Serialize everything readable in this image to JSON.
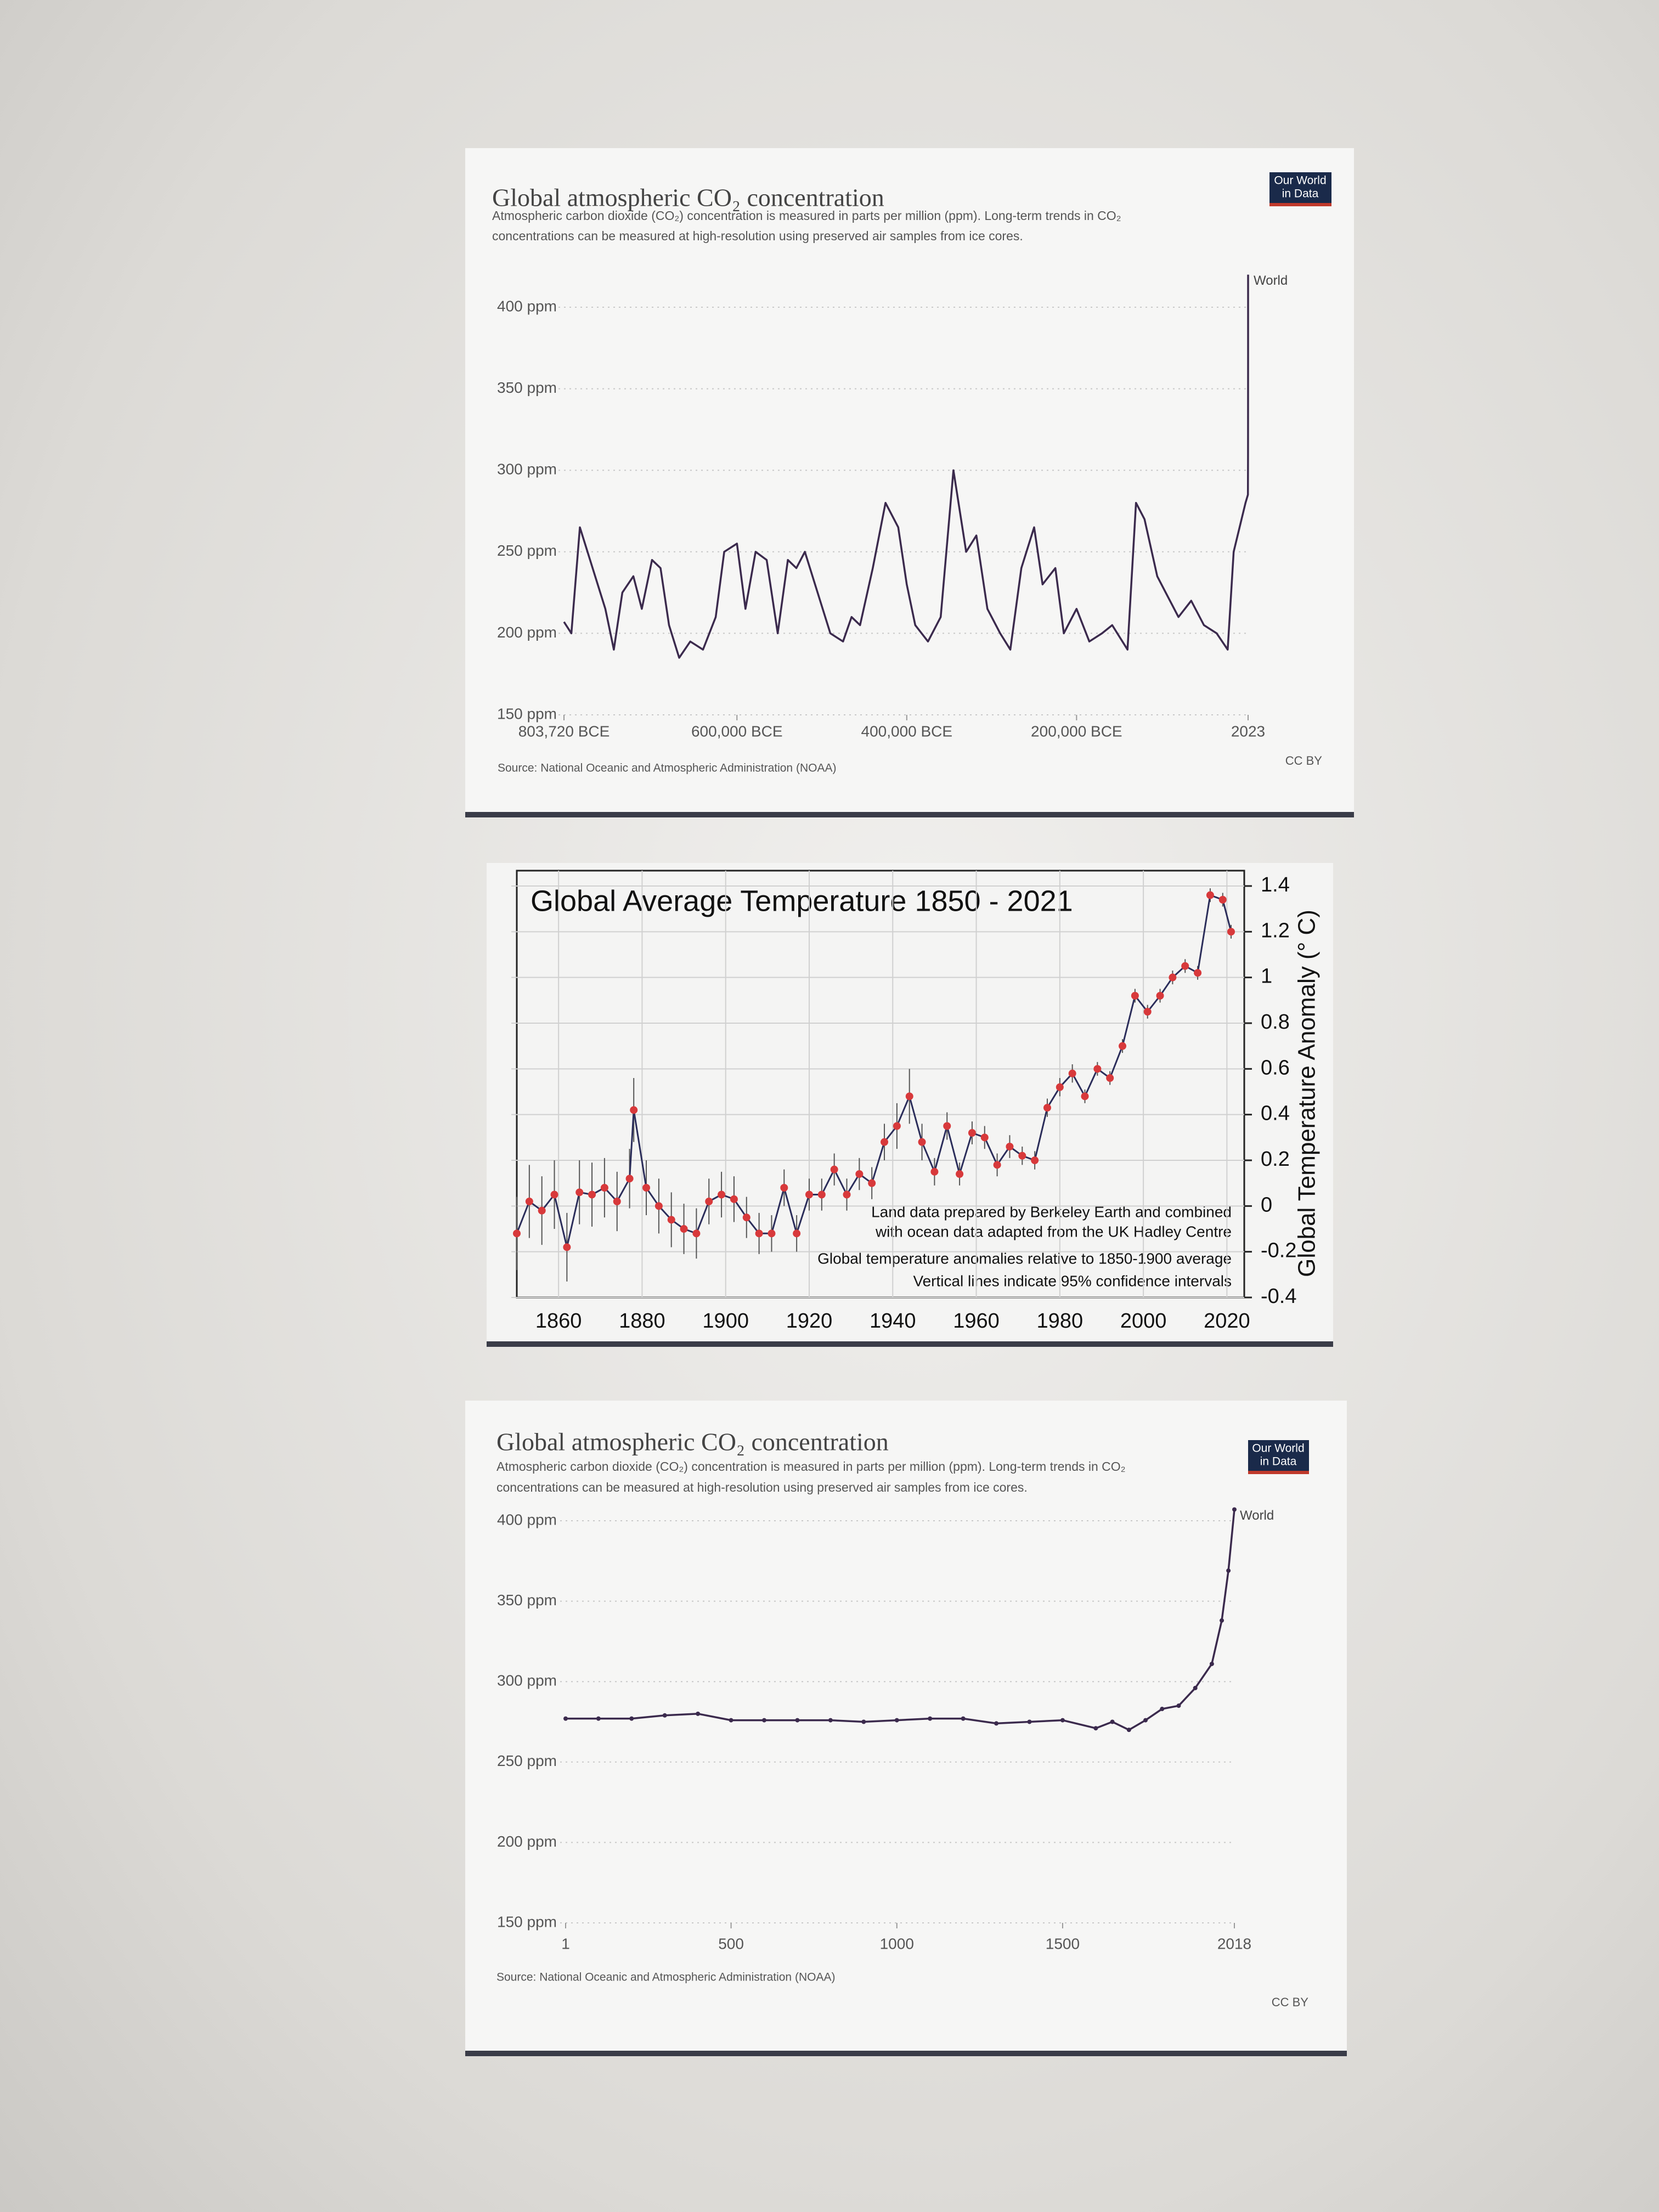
{
  "chart_data": [
    {
      "type": "line",
      "title": "Global atmospheric CO₂ concentration",
      "subtitle": [
        "Atmospheric carbon dioxide (CO₂) concentration is measured in parts per million (ppm). Long-term trends in CO₂",
        "concentrations can be measured at high-resolution using preserved air samples from ice cores."
      ],
      "source": "Source: National Oceanic and Atmospheric Administration (NOAA)",
      "license": "CC BY",
      "logo": [
        "Our World",
        "in Data"
      ],
      "x": [
        -803720,
        -795000,
        -785000,
        -770000,
        -755000,
        -745000,
        -735000,
        -722000,
        -712000,
        -700000,
        -690000,
        -680000,
        -668000,
        -655000,
        -640000,
        -625000,
        -615000,
        -600000,
        -590000,
        -578000,
        -565000,
        -552000,
        -540000,
        -530000,
        -520000,
        -505000,
        -490000,
        -475000,
        -465000,
        -455000,
        -440000,
        -425000,
        -410000,
        -400000,
        -390000,
        -375000,
        -360000,
        -345000,
        -330000,
        -318000,
        -305000,
        -290000,
        -278000,
        -265000,
        -250000,
        -240000,
        -225000,
        -215000,
        -200000,
        -185000,
        -170000,
        -158000,
        -140000,
        -130000,
        -120000,
        -105000,
        -95000,
        -80000,
        -65000,
        -50000,
        -35000,
        -22000,
        -15000,
        -8000,
        -1000,
        1850,
        1950,
        2000,
        2023
      ],
      "series": [
        {
          "name": "World",
          "color": "#3b2a4d",
          "values": [
            207,
            200,
            265,
            240,
            215,
            190,
            225,
            235,
            215,
            245,
            240,
            205,
            185,
            195,
            190,
            210,
            250,
            255,
            215,
            250,
            245,
            200,
            245,
            240,
            250,
            225,
            200,
            195,
            210,
            205,
            240,
            280,
            265,
            230,
            205,
            195,
            210,
            300,
            250,
            260,
            215,
            200,
            190,
            240,
            265,
            230,
            240,
            200,
            215,
            195,
            200,
            205,
            190,
            280,
            270,
            235,
            225,
            210,
            220,
            205,
            200,
            190,
            250,
            265,
            280,
            285,
            310,
            370,
            420
          ]
        }
      ],
      "xlim": [
        -803720,
        2023
      ],
      "xticks": [
        {
          "value": -803720,
          "label": "803,720 BCE"
        },
        {
          "value": -600000,
          "label": "600,000 BCE"
        },
        {
          "value": -400000,
          "label": "400,000 BCE"
        },
        {
          "value": -200000,
          "label": "200,000 BCE"
        },
        2023
      ],
      "ylim": [
        150,
        400
      ],
      "yticks": [
        {
          "value": 150,
          "label": "150 ppm"
        },
        {
          "value": 200,
          "label": "200 ppm"
        },
        {
          "value": 250,
          "label": "250 ppm"
        },
        {
          "value": 300,
          "label": "300 ppm"
        },
        {
          "value": 350,
          "label": "350 ppm"
        },
        {
          "value": 400,
          "label": "400 ppm"
        }
      ],
      "grid": "y"
    },
    {
      "type": "line",
      "title": "Global Average Temperature 1850 - 2021",
      "y_label": "Global Temperature Anomaly (° C)",
      "annotations": [
        "Land data prepared by Berkeley Earth and combined",
        "with ocean data adapted from the UK Hadley Centre",
        "Global temperature anomalies relative to 1850-1900 average",
        "Vertical lines indicate 95% confidence intervals"
      ],
      "x": [
        1850,
        1853,
        1856,
        1859,
        1862,
        1865,
        1868,
        1871,
        1874,
        1877,
        1878,
        1881,
        1884,
        1887,
        1890,
        1893,
        1896,
        1899,
        1902,
        1905,
        1908,
        1911,
        1914,
        1917,
        1920,
        1923,
        1926,
        1929,
        1932,
        1935,
        1938,
        1941,
        1944,
        1947,
        1950,
        1953,
        1956,
        1959,
        1962,
        1965,
        1968,
        1971,
        1974,
        1977,
        1980,
        1983,
        1986,
        1989,
        1992,
        1995,
        1998,
        2001,
        2004,
        2007,
        2010,
        2013,
        2016,
        2019,
        2021
      ],
      "values": [
        -0.12,
        0.02,
        -0.02,
        0.05,
        -0.18,
        0.06,
        0.05,
        0.08,
        0.02,
        0.12,
        0.42,
        0.08,
        0.0,
        -0.06,
        -0.1,
        -0.12,
        0.02,
        0.05,
        0.03,
        -0.05,
        -0.12,
        -0.12,
        0.08,
        -0.12,
        0.05,
        0.05,
        0.16,
        0.05,
        0.14,
        0.1,
        0.28,
        0.35,
        0.48,
        0.28,
        0.15,
        0.35,
        0.14,
        0.32,
        0.3,
        0.18,
        0.26,
        0.22,
        0.2,
        0.43,
        0.52,
        0.58,
        0.48,
        0.6,
        0.56,
        0.7,
        0.92,
        0.85,
        0.92,
        1.0,
        1.05,
        1.02,
        1.36,
        1.34,
        1.2
      ],
      "errors": [
        0.16,
        0.16,
        0.15,
        0.15,
        0.15,
        0.14,
        0.14,
        0.13,
        0.13,
        0.13,
        0.14,
        0.12,
        0.12,
        0.12,
        0.11,
        0.11,
        0.1,
        0.1,
        0.1,
        0.09,
        0.09,
        0.08,
        0.08,
        0.08,
        0.07,
        0.07,
        0.07,
        0.07,
        0.07,
        0.07,
        0.08,
        0.1,
        0.12,
        0.08,
        0.06,
        0.06,
        0.05,
        0.05,
        0.05,
        0.05,
        0.05,
        0.04,
        0.04,
        0.04,
        0.04,
        0.04,
        0.03,
        0.03,
        0.03,
        0.03,
        0.03,
        0.03,
        0.03,
        0.03,
        0.03,
        0.03,
        0.03,
        0.03,
        0.03
      ],
      "color": "#2b2d5a",
      "marker_color": "#d8393b",
      "xlim": [
        1850,
        2021
      ],
      "xticks": [
        1860,
        1880,
        1900,
        1920,
        1940,
        1960,
        1980,
        2000,
        2020
      ],
      "ylim": [
        -0.4,
        1.4
      ],
      "yticks": [
        -0.4,
        -0.2,
        0,
        0.2,
        0.4,
        0.6,
        0.8,
        1,
        1.2,
        1.4
      ],
      "grid": "both"
    },
    {
      "type": "line",
      "title": "Global atmospheric CO₂ concentration",
      "subtitle": [
        "Atmospheric carbon dioxide (CO₂) concentration is measured in parts per million (ppm). Long-term trends in CO₂",
        "concentrations can be measured at high-resolution using preserved air samples from ice cores."
      ],
      "source": "Source: National Oceanic and Atmospheric Administration (NOAA)",
      "license": "CC BY",
      "logo": [
        "Our World",
        "in Data"
      ],
      "x": [
        1,
        100,
        200,
        300,
        400,
        500,
        600,
        700,
        800,
        900,
        1000,
        1100,
        1200,
        1300,
        1400,
        1500,
        1600,
        1650,
        1700,
        1750,
        1800,
        1850,
        1900,
        1950,
        1980,
        2000,
        2018
      ],
      "series": [
        {
          "name": "World",
          "color": "#3b2a4d",
          "values": [
            277,
            277,
            277,
            279,
            280,
            276,
            276,
            276,
            276,
            275,
            276,
            277,
            277,
            274,
            275,
            276,
            271,
            275,
            270,
            276,
            283,
            285,
            296,
            311,
            338,
            369,
            407
          ]
        }
      ],
      "markers": true,
      "xlim": [
        1,
        2018
      ],
      "xticks": [
        1,
        500,
        1000,
        1500,
        2018
      ],
      "ylim": [
        150,
        400
      ],
      "yticks": [
        {
          "value": 150,
          "label": "150 ppm"
        },
        {
          "value": 200,
          "label": "200 ppm"
        },
        {
          "value": 250,
          "label": "250 ppm"
        },
        {
          "value": 300,
          "label": "300 ppm"
        },
        {
          "value": 350,
          "label": "350 ppm"
        },
        {
          "value": 400,
          "label": "400 ppm"
        }
      ],
      "grid": "y"
    }
  ]
}
